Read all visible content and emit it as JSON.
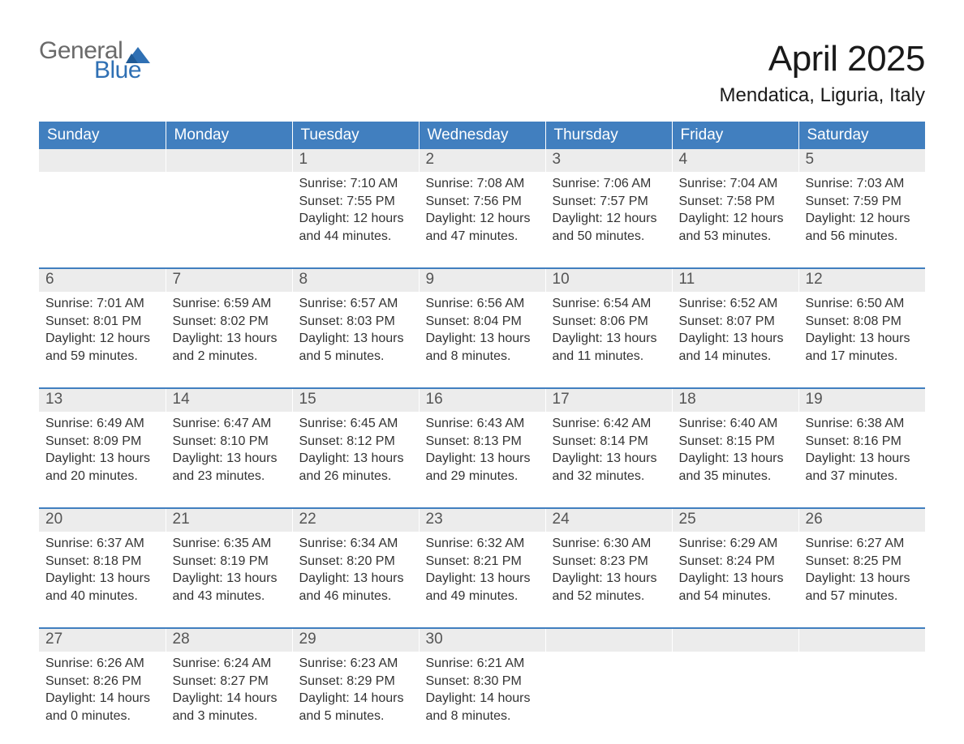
{
  "logo": {
    "line1": "General",
    "line2": "Blue",
    "line1_color": "#6a6a6a",
    "line2_color": "#2f70b4",
    "shape_color": "#2f70b4",
    "fontsize": 30
  },
  "header": {
    "month_title": "April 2025",
    "location": "Mendatica, Liguria, Italy",
    "title_fontsize": 44,
    "location_fontsize": 24,
    "title_color": "#1a1a1a"
  },
  "calendar": {
    "type": "table",
    "header_bg": "#417fbf",
    "header_text_color": "#ffffff",
    "header_fontsize": 19,
    "daynum_bg": "#ececec",
    "daynum_color": "#555555",
    "daynum_fontsize": 19,
    "body_fontsize": 16,
    "body_color": "#333333",
    "row_border_color": "#417fbf",
    "background_color": "#ffffff",
    "days_of_week": [
      "Sunday",
      "Monday",
      "Tuesday",
      "Wednesday",
      "Thursday",
      "Friday",
      "Saturday"
    ],
    "weeks": [
      [
        null,
        null,
        {
          "n": "1",
          "sunrise": "Sunrise: 7:10 AM",
          "sunset": "Sunset: 7:55 PM",
          "dl1": "Daylight: 12 hours",
          "dl2": "and 44 minutes."
        },
        {
          "n": "2",
          "sunrise": "Sunrise: 7:08 AM",
          "sunset": "Sunset: 7:56 PM",
          "dl1": "Daylight: 12 hours",
          "dl2": "and 47 minutes."
        },
        {
          "n": "3",
          "sunrise": "Sunrise: 7:06 AM",
          "sunset": "Sunset: 7:57 PM",
          "dl1": "Daylight: 12 hours",
          "dl2": "and 50 minutes."
        },
        {
          "n": "4",
          "sunrise": "Sunrise: 7:04 AM",
          "sunset": "Sunset: 7:58 PM",
          "dl1": "Daylight: 12 hours",
          "dl2": "and 53 minutes."
        },
        {
          "n": "5",
          "sunrise": "Sunrise: 7:03 AM",
          "sunset": "Sunset: 7:59 PM",
          "dl1": "Daylight: 12 hours",
          "dl2": "and 56 minutes."
        }
      ],
      [
        {
          "n": "6",
          "sunrise": "Sunrise: 7:01 AM",
          "sunset": "Sunset: 8:01 PM",
          "dl1": "Daylight: 12 hours",
          "dl2": "and 59 minutes."
        },
        {
          "n": "7",
          "sunrise": "Sunrise: 6:59 AM",
          "sunset": "Sunset: 8:02 PM",
          "dl1": "Daylight: 13 hours",
          "dl2": "and 2 minutes."
        },
        {
          "n": "8",
          "sunrise": "Sunrise: 6:57 AM",
          "sunset": "Sunset: 8:03 PM",
          "dl1": "Daylight: 13 hours",
          "dl2": "and 5 minutes."
        },
        {
          "n": "9",
          "sunrise": "Sunrise: 6:56 AM",
          "sunset": "Sunset: 8:04 PM",
          "dl1": "Daylight: 13 hours",
          "dl2": "and 8 minutes."
        },
        {
          "n": "10",
          "sunrise": "Sunrise: 6:54 AM",
          "sunset": "Sunset: 8:06 PM",
          "dl1": "Daylight: 13 hours",
          "dl2": "and 11 minutes."
        },
        {
          "n": "11",
          "sunrise": "Sunrise: 6:52 AM",
          "sunset": "Sunset: 8:07 PM",
          "dl1": "Daylight: 13 hours",
          "dl2": "and 14 minutes."
        },
        {
          "n": "12",
          "sunrise": "Sunrise: 6:50 AM",
          "sunset": "Sunset: 8:08 PM",
          "dl1": "Daylight: 13 hours",
          "dl2": "and 17 minutes."
        }
      ],
      [
        {
          "n": "13",
          "sunrise": "Sunrise: 6:49 AM",
          "sunset": "Sunset: 8:09 PM",
          "dl1": "Daylight: 13 hours",
          "dl2": "and 20 minutes."
        },
        {
          "n": "14",
          "sunrise": "Sunrise: 6:47 AM",
          "sunset": "Sunset: 8:10 PM",
          "dl1": "Daylight: 13 hours",
          "dl2": "and 23 minutes."
        },
        {
          "n": "15",
          "sunrise": "Sunrise: 6:45 AM",
          "sunset": "Sunset: 8:12 PM",
          "dl1": "Daylight: 13 hours",
          "dl2": "and 26 minutes."
        },
        {
          "n": "16",
          "sunrise": "Sunrise: 6:43 AM",
          "sunset": "Sunset: 8:13 PM",
          "dl1": "Daylight: 13 hours",
          "dl2": "and 29 minutes."
        },
        {
          "n": "17",
          "sunrise": "Sunrise: 6:42 AM",
          "sunset": "Sunset: 8:14 PM",
          "dl1": "Daylight: 13 hours",
          "dl2": "and 32 minutes."
        },
        {
          "n": "18",
          "sunrise": "Sunrise: 6:40 AM",
          "sunset": "Sunset: 8:15 PM",
          "dl1": "Daylight: 13 hours",
          "dl2": "and 35 minutes."
        },
        {
          "n": "19",
          "sunrise": "Sunrise: 6:38 AM",
          "sunset": "Sunset: 8:16 PM",
          "dl1": "Daylight: 13 hours",
          "dl2": "and 37 minutes."
        }
      ],
      [
        {
          "n": "20",
          "sunrise": "Sunrise: 6:37 AM",
          "sunset": "Sunset: 8:18 PM",
          "dl1": "Daylight: 13 hours",
          "dl2": "and 40 minutes."
        },
        {
          "n": "21",
          "sunrise": "Sunrise: 6:35 AM",
          "sunset": "Sunset: 8:19 PM",
          "dl1": "Daylight: 13 hours",
          "dl2": "and 43 minutes."
        },
        {
          "n": "22",
          "sunrise": "Sunrise: 6:34 AM",
          "sunset": "Sunset: 8:20 PM",
          "dl1": "Daylight: 13 hours",
          "dl2": "and 46 minutes."
        },
        {
          "n": "23",
          "sunrise": "Sunrise: 6:32 AM",
          "sunset": "Sunset: 8:21 PM",
          "dl1": "Daylight: 13 hours",
          "dl2": "and 49 minutes."
        },
        {
          "n": "24",
          "sunrise": "Sunrise: 6:30 AM",
          "sunset": "Sunset: 8:23 PM",
          "dl1": "Daylight: 13 hours",
          "dl2": "and 52 minutes."
        },
        {
          "n": "25",
          "sunrise": "Sunrise: 6:29 AM",
          "sunset": "Sunset: 8:24 PM",
          "dl1": "Daylight: 13 hours",
          "dl2": "and 54 minutes."
        },
        {
          "n": "26",
          "sunrise": "Sunrise: 6:27 AM",
          "sunset": "Sunset: 8:25 PM",
          "dl1": "Daylight: 13 hours",
          "dl2": "and 57 minutes."
        }
      ],
      [
        {
          "n": "27",
          "sunrise": "Sunrise: 6:26 AM",
          "sunset": "Sunset: 8:26 PM",
          "dl1": "Daylight: 14 hours",
          "dl2": "and 0 minutes."
        },
        {
          "n": "28",
          "sunrise": "Sunrise: 6:24 AM",
          "sunset": "Sunset: 8:27 PM",
          "dl1": "Daylight: 14 hours",
          "dl2": "and 3 minutes."
        },
        {
          "n": "29",
          "sunrise": "Sunrise: 6:23 AM",
          "sunset": "Sunset: 8:29 PM",
          "dl1": "Daylight: 14 hours",
          "dl2": "and 5 minutes."
        },
        {
          "n": "30",
          "sunrise": "Sunrise: 6:21 AM",
          "sunset": "Sunset: 8:30 PM",
          "dl1": "Daylight: 14 hours",
          "dl2": "and 8 minutes."
        },
        null,
        null,
        null
      ]
    ]
  }
}
